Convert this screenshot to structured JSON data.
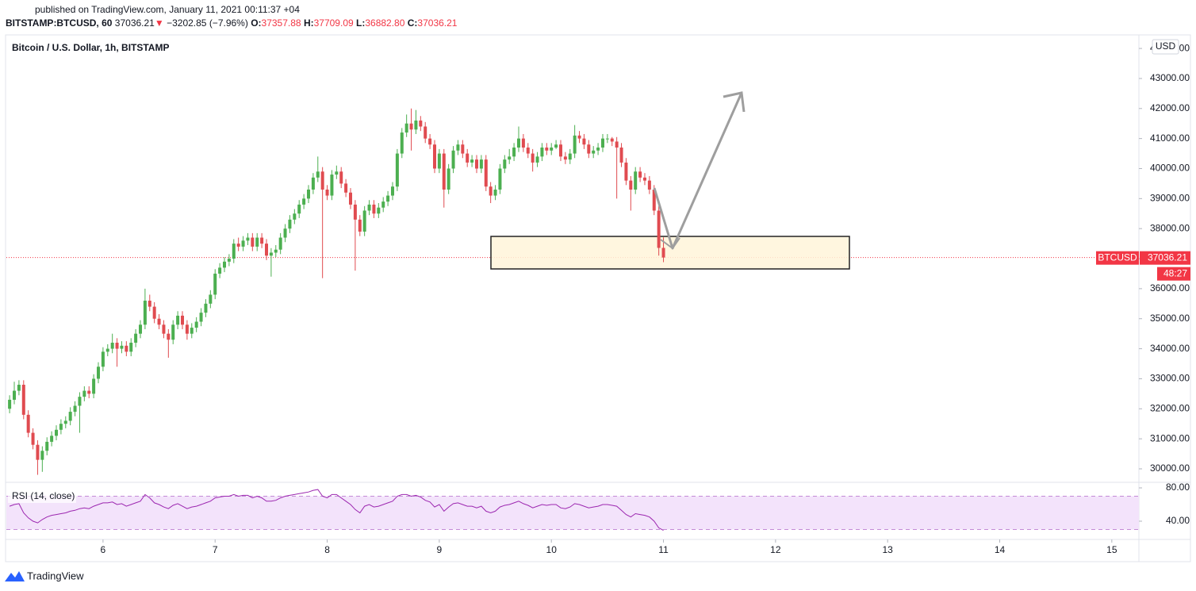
{
  "header": {
    "published": "published on TradingView.com, January 11, 2021 00:11:37 +04",
    "symbol": "BITSTAMP:BTCUSD, 60",
    "last": "37036.21",
    "direction": "▼",
    "change": "−3202.85 (−7.96%)",
    "o_label": "O:",
    "o": "37357.88",
    "h_label": "H:",
    "h": "37709.09",
    "l_label": "L:",
    "l": "36882.80",
    "c_label": "C:",
    "c": "37036.21"
  },
  "chart_data": [
    {
      "type": "candlestick",
      "title": "Bitcoin / U.S. Dollar, 1h, BITSTAMP",
      "currency": "USD",
      "symbol_label": "BTCUSD",
      "last_label": "37036.21",
      "countdown": "48:27",
      "up_color": "#4caf50",
      "down_color": "#e04b50",
      "last_color": "#f23645",
      "ylim": [
        29577,
        44425
      ],
      "yticks": [
        {
          "value": 30000,
          "label": "30000.00"
        },
        {
          "value": 31000,
          "label": "31000.00"
        },
        {
          "value": 32000,
          "label": "32000.00"
        },
        {
          "value": 33000,
          "label": "33000.00"
        },
        {
          "value": 34000,
          "label": "34000.00"
        },
        {
          "value": 35000,
          "label": "35000.00"
        },
        {
          "value": 36000,
          "label": "36000.00"
        },
        {
          "value": 37000,
          "label": "37000.00"
        },
        {
          "value": 38000,
          "label": "38000.00"
        },
        {
          "value": 39000,
          "label": "39000.00"
        },
        {
          "value": 40000,
          "label": "40000.00"
        },
        {
          "value": 41000,
          "label": "41000.00"
        },
        {
          "value": 42000,
          "label": "42000.00"
        },
        {
          "value": 43000,
          "label": "43000.00"
        },
        {
          "value": 44000,
          "label": "44000.00"
        }
      ],
      "xlim": [
        -0.7,
        241.8
      ],
      "xticks": [
        {
          "value": 20,
          "label": "6"
        },
        {
          "value": 44,
          "label": "7"
        },
        {
          "value": 68,
          "label": "8"
        },
        {
          "value": 92,
          "label": "9"
        },
        {
          "value": 116,
          "label": "10"
        },
        {
          "value": 140,
          "label": "11"
        },
        {
          "value": 164,
          "label": "12"
        },
        {
          "value": 188,
          "label": "13"
        },
        {
          "value": 212,
          "label": "14"
        },
        {
          "value": 236,
          "label": "15"
        }
      ],
      "grid": false,
      "ohlc": [
        [
          32000,
          32450,
          31850,
          32300
        ],
        [
          32300,
          32900,
          32150,
          32600
        ],
        [
          32600,
          32950,
          32450,
          32800
        ],
        [
          32800,
          32950,
          31650,
          31800
        ],
        [
          31800,
          31950,
          31050,
          31200
        ],
        [
          31200,
          31350,
          30650,
          30800
        ],
        [
          30800,
          30950,
          29800,
          30300
        ],
        [
          30300,
          30750,
          29900,
          30600
        ],
        [
          30600,
          31050,
          30450,
          30900
        ],
        [
          30900,
          31250,
          30750,
          31100
        ],
        [
          31100,
          31450,
          30950,
          31300
        ],
        [
          31300,
          31650,
          31150,
          31500
        ],
        [
          31500,
          31750,
          31350,
          31600
        ],
        [
          31600,
          32050,
          31450,
          31900
        ],
        [
          31900,
          32250,
          31750,
          32100
        ],
        [
          32100,
          32550,
          31200,
          32400
        ],
        [
          32400,
          32750,
          32250,
          32600
        ],
        [
          32600,
          32750,
          32350,
          32500
        ],
        [
          32500,
          33150,
          32350,
          33000
        ],
        [
          33000,
          33550,
          32850,
          33400
        ],
        [
          33400,
          34050,
          33250,
          33900
        ],
        [
          33900,
          34150,
          33750,
          34000
        ],
        [
          34000,
          34500,
          33850,
          34200
        ],
        [
          34200,
          34350,
          33400,
          34000
        ],
        [
          34000,
          34250,
          33850,
          34100
        ],
        [
          34100,
          34250,
          33750,
          33900
        ],
        [
          33900,
          34350,
          33750,
          34200
        ],
        [
          34200,
          34650,
          34050,
          34500
        ],
        [
          34500,
          34950,
          34350,
          34800
        ],
        [
          34800,
          36000,
          34650,
          35600
        ],
        [
          35600,
          35800,
          35250,
          35400
        ],
        [
          35400,
          35550,
          34850,
          35000
        ],
        [
          35000,
          35150,
          34650,
          34800
        ],
        [
          34800,
          34950,
          34350,
          34500
        ],
        [
          34500,
          34650,
          33700,
          34300
        ],
        [
          34300,
          34950,
          34150,
          34800
        ],
        [
          34800,
          35250,
          34650,
          35100
        ],
        [
          35100,
          35250,
          34650,
          34800
        ],
        [
          34800,
          34950,
          34300,
          34500
        ],
        [
          34500,
          34850,
          34350,
          34700
        ],
        [
          34700,
          35050,
          34550,
          34900
        ],
        [
          34900,
          35350,
          34750,
          35200
        ],
        [
          35200,
          35650,
          35050,
          35500
        ],
        [
          35500,
          35950,
          35350,
          35800
        ],
        [
          35800,
          36650,
          35650,
          36500
        ],
        [
          36500,
          36850,
          36350,
          36700
        ],
        [
          36700,
          37050,
          36550,
          36900
        ],
        [
          36900,
          37150,
          36750,
          37000
        ],
        [
          37000,
          37650,
          36850,
          37500
        ],
        [
          37500,
          37700,
          37250,
          37400
        ],
        [
          37400,
          37750,
          37250,
          37600
        ],
        [
          37600,
          37850,
          37450,
          37700
        ],
        [
          37700,
          37850,
          37250,
          37400
        ],
        [
          37400,
          37850,
          37250,
          37700
        ],
        [
          37700,
          37850,
          37350,
          37500
        ],
        [
          37500,
          37650,
          36950,
          37100
        ],
        [
          37100,
          37350,
          36400,
          37200
        ],
        [
          37200,
          37450,
          37050,
          37300
        ],
        [
          37300,
          37850,
          37150,
          37700
        ],
        [
          37700,
          38150,
          37550,
          38000
        ],
        [
          38000,
          38450,
          37850,
          38300
        ],
        [
          38300,
          38650,
          38150,
          38500
        ],
        [
          38500,
          38950,
          38350,
          38800
        ],
        [
          38800,
          39150,
          38650,
          39000
        ],
        [
          39000,
          39450,
          38850,
          39300
        ],
        [
          39300,
          39850,
          39150,
          39700
        ],
        [
          39700,
          40400,
          39550,
          39900
        ],
        [
          39900,
          40050,
          36350,
          39300
        ],
        [
          39300,
          39450,
          38950,
          39100
        ],
        [
          39100,
          39950,
          38950,
          39800
        ],
        [
          39800,
          40100,
          39650,
          39900
        ],
        [
          39900,
          40050,
          39350,
          39500
        ],
        [
          39500,
          39650,
          39050,
          39200
        ],
        [
          39200,
          39350,
          38650,
          38800
        ],
        [
          38800,
          38950,
          36600,
          38300
        ],
        [
          38300,
          38450,
          37750,
          37900
        ],
        [
          37900,
          38750,
          37750,
          38600
        ],
        [
          38600,
          38950,
          38450,
          38800
        ],
        [
          38800,
          38950,
          38350,
          38500
        ],
        [
          38500,
          38850,
          38350,
          38700
        ],
        [
          38700,
          39050,
          38550,
          38900
        ],
        [
          38900,
          39250,
          38750,
          39100
        ],
        [
          39100,
          39550,
          38950,
          39400
        ],
        [
          39400,
          40650,
          39250,
          40500
        ],
        [
          40500,
          41350,
          40350,
          41200
        ],
        [
          41200,
          41800,
          41050,
          41500
        ],
        [
          41500,
          42000,
          40600,
          41300
        ],
        [
          41300,
          41950,
          41150,
          41600
        ],
        [
          41600,
          41750,
          41250,
          41400
        ],
        [
          41400,
          41550,
          40850,
          41000
        ],
        [
          41000,
          41150,
          40650,
          40800
        ],
        [
          40800,
          40950,
          39850,
          40000
        ],
        [
          40000,
          40650,
          39850,
          40500
        ],
        [
          40500,
          40650,
          38700,
          39300
        ],
        [
          39300,
          40150,
          39150,
          40000
        ],
        [
          40000,
          40750,
          39850,
          40600
        ],
        [
          40600,
          40950,
          40450,
          40800
        ],
        [
          40800,
          40950,
          40350,
          40500
        ],
        [
          40500,
          40650,
          40050,
          40200
        ],
        [
          40200,
          40450,
          40050,
          40300
        ],
        [
          40300,
          40450,
          39850,
          40000
        ],
        [
          40000,
          40450,
          39850,
          40300
        ],
        [
          40300,
          40450,
          39250,
          39400
        ],
        [
          39400,
          39550,
          38850,
          39100
        ],
        [
          39100,
          39450,
          38950,
          39300
        ],
        [
          39300,
          40150,
          39150,
          40000
        ],
        [
          40000,
          40450,
          39850,
          40300
        ],
        [
          40300,
          40650,
          40150,
          40400
        ],
        [
          40400,
          40850,
          40250,
          40700
        ],
        [
          40700,
          41400,
          40550,
          41000
        ],
        [
          41000,
          41150,
          40550,
          40700
        ],
        [
          40700,
          40850,
          40350,
          40500
        ],
        [
          40500,
          40650,
          39900,
          40200
        ],
        [
          40200,
          40550,
          40050,
          40400
        ],
        [
          40400,
          40850,
          40250,
          40700
        ],
        [
          40700,
          40850,
          40450,
          40600
        ],
        [
          40600,
          40850,
          40450,
          40700
        ],
        [
          40700,
          40950,
          40650,
          40800
        ],
        [
          40800,
          40950,
          40250,
          40400
        ],
        [
          40400,
          40550,
          40150,
          40300
        ],
        [
          40300,
          40650,
          40150,
          40500
        ],
        [
          40500,
          41450,
          40350,
          41100
        ],
        [
          41100,
          41250,
          40850,
          41000
        ],
        [
          41000,
          41150,
          40650,
          40800
        ],
        [
          40800,
          40950,
          40350,
          40500
        ],
        [
          40500,
          40750,
          40350,
          40600
        ],
        [
          40600,
          40850,
          40450,
          40700
        ],
        [
          40700,
          41150,
          40550,
          41000
        ],
        [
          41000,
          41150,
          40850,
          41000
        ],
        [
          41000,
          41050,
          40750,
          40900
        ],
        [
          40900,
          41050,
          39000,
          40700
        ],
        [
          40700,
          40850,
          40050,
          40200
        ],
        [
          40200,
          40350,
          39450,
          39600
        ],
        [
          39600,
          39750,
          38600,
          39300
        ],
        [
          39300,
          40050,
          39150,
          39900
        ],
        [
          39900,
          40050,
          39550,
          39700
        ],
        [
          39700,
          39850,
          39450,
          39600
        ],
        [
          39600,
          39750,
          39150,
          39300
        ],
        [
          39300,
          39450,
          38450,
          38600
        ],
        [
          38600,
          38750,
          37100,
          37357.88
        ],
        [
          37357.88,
          37709.09,
          36882.8,
          37036.21
        ]
      ]
    },
    {
      "type": "line",
      "title": "RSI (14, close)",
      "color": "#9c27b0",
      "band_color": "#f3e3fb",
      "band": [
        30,
        70
      ],
      "ylim": [
        18.1,
        85.7
      ],
      "yticks": [
        {
          "value": 40,
          "label": "40.00"
        },
        {
          "value": 80,
          "label": "80.00"
        }
      ],
      "xlim": [
        -0.7,
        241.8
      ],
      "values": [
        58,
        60,
        61,
        50,
        44,
        40,
        38,
        42,
        45,
        47,
        48,
        49,
        50,
        52,
        53,
        55,
        56,
        55,
        58,
        60,
        62,
        62,
        63,
        60,
        61,
        58,
        60,
        62,
        64,
        72,
        68,
        62,
        60,
        57,
        55,
        59,
        61,
        58,
        55,
        57,
        58,
        60,
        62,
        64,
        68,
        69,
        70,
        70,
        72,
        70,
        71,
        71,
        68,
        70,
        68,
        64,
        64,
        65,
        68,
        70,
        71,
        72,
        73,
        74,
        75,
        77,
        78,
        70,
        68,
        72,
        72,
        68,
        64,
        60,
        54,
        50,
        58,
        60,
        57,
        58,
        60,
        62,
        64,
        70,
        72,
        72,
        70,
        71,
        69,
        65,
        63,
        57,
        60,
        52,
        57,
        61,
        62,
        60,
        58,
        58,
        56,
        58,
        52,
        50,
        52,
        57,
        59,
        60,
        62,
        64,
        61,
        59,
        56,
        58,
        60,
        59,
        60,
        60,
        56,
        55,
        57,
        61,
        60,
        58,
        56,
        57,
        58,
        60,
        60,
        59,
        58,
        53,
        48,
        45,
        49,
        48,
        47,
        45,
        40,
        32,
        29
      ]
    }
  ],
  "footer": {
    "brand": "TradingView"
  }
}
